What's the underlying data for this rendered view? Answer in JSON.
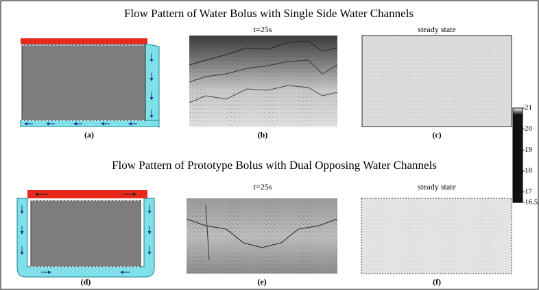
{
  "rows": [
    {
      "title": "Flow Pattern of Water Bolus with Single Side Water Channels",
      "panels": [
        {
          "label": "(a)"
        },
        {
          "subtitle": "t=25s",
          "label": "(b)"
        },
        {
          "subtitle": "steady state",
          "label": "(c)"
        }
      ]
    },
    {
      "title": "Flow Pattern of Prototype Bolus with Dual Opposing Water Channels",
      "panels": [
        {
          "label": "(d)"
        },
        {
          "subtitle": "t=25s",
          "label": "(e)"
        },
        {
          "subtitle": "steady state",
          "label": "(f)"
        }
      ]
    }
  ],
  "colorbar": {
    "ticks": [
      21,
      20,
      19,
      18,
      17,
      16.5
    ]
  }
}
